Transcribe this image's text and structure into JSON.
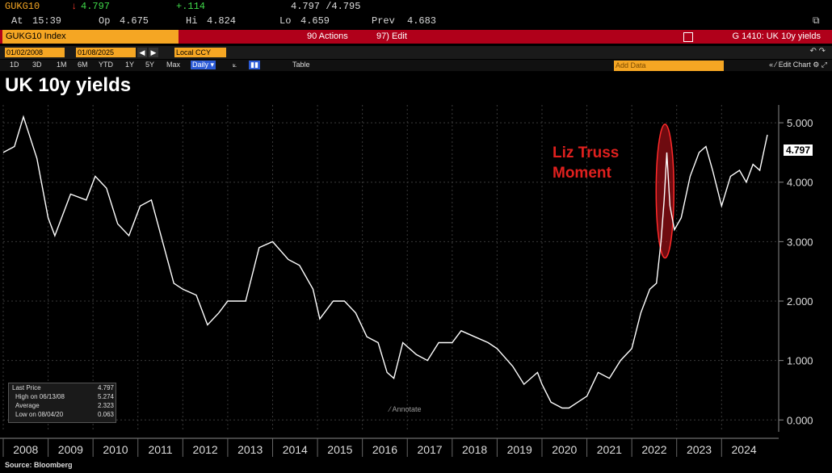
{
  "header": {
    "ticker": "GUKG10",
    "last": "4.797",
    "change": "+.114",
    "bid_ask": "4.797 /4.795",
    "at_label": "At",
    "time": "15:39",
    "op_label": "Op",
    "open": "4.675",
    "hi_label": "Hi",
    "high": "4.824",
    "lo_label": "Lo",
    "low": "4.659",
    "prev_label": "Prev",
    "prev": "4.683"
  },
  "cmdbar": {
    "security": "GUKG10 Index",
    "actions": "90 Actions",
    "edit": "97) Edit",
    "page_title": "G 1410: UK 10y yields"
  },
  "datebar": {
    "start_date": "01/02/2008",
    "end_date": "01/08/2025",
    "currency": "Local CCY"
  },
  "rangebar": {
    "ranges": [
      "1D",
      "3D",
      "1M",
      "6M",
      "YTD",
      "1Y",
      "5Y",
      "Max"
    ],
    "frequency": "Daily",
    "table_label": "Table",
    "add_data": "Add Data",
    "edit_chart": "Edit Chart"
  },
  "chart_data": {
    "type": "line",
    "title": "UK 10y yields",
    "xlabel": "",
    "ylabel": "",
    "xlim": [
      2008.0,
      2025.02
    ],
    "ylim": [
      -0.2,
      5.3
    ],
    "y_ticks": [
      "5.000",
      "4.000",
      "3.000",
      "2.000",
      "1.000",
      "0.000"
    ],
    "x_ticks": [
      "2008",
      "2009",
      "2010",
      "2011",
      "2012",
      "2013",
      "2014",
      "2015",
      "2016",
      "2017",
      "2018",
      "2019",
      "2020",
      "2021",
      "2022",
      "2023",
      "2024"
    ],
    "grid": true,
    "series": [
      {
        "x": [
          2008.0,
          2008.25,
          2008.45,
          2008.75,
          2009.0,
          2009.15,
          2009.5,
          2009.85,
          2010.05,
          2010.3,
          2010.55,
          2010.8,
          2011.05,
          2011.3,
          2011.55,
          2011.8,
          2012.0,
          2012.3,
          2012.55,
          2012.8,
          2013.0,
          2013.4,
          2013.7,
          2014.0,
          2014.35,
          2014.6,
          2014.9,
          2015.05,
          2015.35,
          2015.6,
          2015.85,
          2016.1,
          2016.35,
          2016.55,
          2016.7,
          2016.9,
          2017.2,
          2017.45,
          2017.7,
          2018.0,
          2018.2,
          2018.5,
          2018.8,
          2019.0,
          2019.35,
          2019.6,
          2019.9,
          2020.0,
          2020.2,
          2020.45,
          2020.6,
          2020.8,
          2021.0,
          2021.25,
          2021.5,
          2021.75,
          2022.0,
          2022.2,
          2022.4,
          2022.55,
          2022.65,
          2022.72,
          2022.78,
          2022.85,
          2022.95,
          2023.1,
          2023.3,
          2023.5,
          2023.65,
          2023.8,
          2024.0,
          2024.2,
          2024.4,
          2024.55,
          2024.7,
          2024.85,
          2025.02
        ],
        "values": [
          4.5,
          4.6,
          5.1,
          4.4,
          3.4,
          3.1,
          3.8,
          3.7,
          4.1,
          3.9,
          3.3,
          3.1,
          3.6,
          3.7,
          3.0,
          2.3,
          2.2,
          2.1,
          1.6,
          1.8,
          2.0,
          2.0,
          2.9,
          3.0,
          2.7,
          2.6,
          2.2,
          1.7,
          2.0,
          2.0,
          1.8,
          1.4,
          1.3,
          0.8,
          0.7,
          1.3,
          1.1,
          1.0,
          1.3,
          1.3,
          1.5,
          1.4,
          1.3,
          1.2,
          0.9,
          0.6,
          0.8,
          0.6,
          0.3,
          0.2,
          0.2,
          0.3,
          0.4,
          0.8,
          0.7,
          1.0,
          1.2,
          1.8,
          2.2,
          2.3,
          3.0,
          3.7,
          4.5,
          3.6,
          3.2,
          3.4,
          4.1,
          4.5,
          4.6,
          4.2,
          3.6,
          4.1,
          4.2,
          4.0,
          4.3,
          4.2,
          4.797
        ]
      }
    ],
    "last_price_label": "4.797",
    "legend": {
      "last_price_label": "Last Price",
      "last_price": "4.797",
      "high_label": "High on 06/13/08",
      "high": "5.274",
      "average_label": "Average",
      "average": "2.323",
      "low_label": "Low on 08/04/20",
      "low": "0.063"
    },
    "annotation": {
      "line1": "Liz Truss",
      "line2": "Moment",
      "color": "#e0201e"
    },
    "line_color": "#ffffff"
  },
  "annotate_label": "Annotate",
  "source": "Source: Bloomberg"
}
